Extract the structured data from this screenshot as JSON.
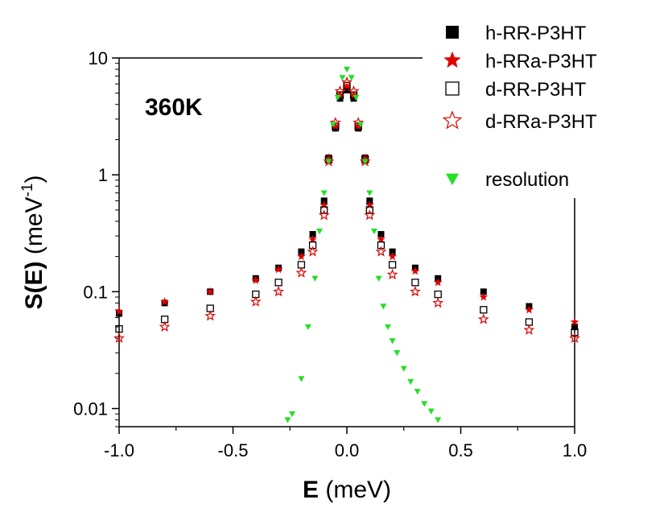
{
  "chart_data": {
    "type": "scatter",
    "title": "",
    "annotation": "360K",
    "xlabel": {
      "bold": "E",
      "rest": " (meV)"
    },
    "ylabel": {
      "bold": "S(E)",
      "rest": " (meV",
      "sup": "-1",
      "close": ")"
    },
    "xlim": [
      -1.0,
      1.0
    ],
    "ylim": [
      0.007,
      10
    ],
    "yscale": "log",
    "grid": false,
    "legend_position": "top-right",
    "x_ticks": [
      -1.0,
      -0.5,
      0.0,
      0.5,
      1.0
    ],
    "x_tick_labels": [
      "-1.0",
      "-0.5",
      "0.0",
      "0.5",
      "1.0"
    ],
    "y_ticks": [
      0.01,
      0.1,
      1,
      10
    ],
    "y_tick_labels": [
      "0.01",
      "0.1",
      "1",
      "10"
    ],
    "colors": {
      "black": "#000000",
      "red": "#e00000",
      "green": "#22e022"
    },
    "series": [
      {
        "name": "h-RR-P3HT",
        "marker": "square-filled",
        "color": "#000000",
        "x": [
          -1.0,
          -0.8,
          -0.6,
          -0.4,
          -0.3,
          -0.2,
          -0.15,
          -0.1,
          -0.08,
          -0.05,
          -0.03,
          0.0,
          0.03,
          0.05,
          0.08,
          0.1,
          0.15,
          0.2,
          0.3,
          0.4,
          0.6,
          0.8,
          1.0
        ],
        "y": [
          0.065,
          0.08,
          0.1,
          0.13,
          0.16,
          0.22,
          0.31,
          0.6,
          1.4,
          2.5,
          4.5,
          5.3,
          4.5,
          2.5,
          1.4,
          0.6,
          0.31,
          0.22,
          0.16,
          0.13,
          0.1,
          0.075,
          0.05
        ]
      },
      {
        "name": "h-RRa-P3HT",
        "marker": "star-filled",
        "color": "#e00000",
        "x": [
          -1.0,
          -0.8,
          -0.6,
          -0.4,
          -0.3,
          -0.2,
          -0.15,
          -0.1,
          -0.08,
          -0.05,
          -0.03,
          0.0,
          0.03,
          0.05,
          0.08,
          0.1,
          0.15,
          0.2,
          0.3,
          0.4,
          0.6,
          0.8,
          1.0
        ],
        "y": [
          0.068,
          0.082,
          0.1,
          0.125,
          0.155,
          0.2,
          0.28,
          0.55,
          1.4,
          2.6,
          4.8,
          5.6,
          4.8,
          2.6,
          1.4,
          0.55,
          0.28,
          0.2,
          0.15,
          0.12,
          0.09,
          0.07,
          0.055
        ]
      },
      {
        "name": "d-RR-P3HT",
        "marker": "square-open",
        "color": "#000000",
        "x": [
          -1.0,
          -0.8,
          -0.6,
          -0.4,
          -0.3,
          -0.2,
          -0.15,
          -0.1,
          -0.08,
          -0.05,
          -0.03,
          0.0,
          0.03,
          0.05,
          0.08,
          0.1,
          0.15,
          0.2,
          0.3,
          0.4,
          0.6,
          0.8,
          1.0
        ],
        "y": [
          0.048,
          0.058,
          0.072,
          0.095,
          0.12,
          0.17,
          0.25,
          0.5,
          1.35,
          2.6,
          4.8,
          5.8,
          4.8,
          2.6,
          1.35,
          0.5,
          0.25,
          0.17,
          0.12,
          0.095,
          0.07,
          0.055,
          0.045
        ]
      },
      {
        "name": "d-RRa-P3HT",
        "marker": "star-open",
        "color": "#e00000",
        "x": [
          -1.0,
          -0.8,
          -0.6,
          -0.4,
          -0.3,
          -0.2,
          -0.15,
          -0.1,
          -0.08,
          -0.05,
          -0.03,
          0.0,
          0.03,
          0.05,
          0.08,
          0.1,
          0.15,
          0.2,
          0.3,
          0.4,
          0.6,
          0.8,
          1.0
        ],
        "y": [
          0.04,
          0.05,
          0.062,
          0.082,
          0.1,
          0.145,
          0.22,
          0.45,
          1.3,
          2.8,
          5.2,
          6.2,
          5.2,
          2.8,
          1.3,
          0.45,
          0.22,
          0.14,
          0.1,
          0.08,
          0.058,
          0.047,
          0.04
        ]
      },
      {
        "name": "resolution",
        "marker": "triangle-down-filled",
        "color": "#22e022",
        "x": [
          -0.26,
          -0.24,
          -0.2,
          -0.17,
          -0.14,
          -0.12,
          -0.1,
          -0.08,
          -0.06,
          -0.04,
          -0.02,
          0.0,
          0.02,
          0.04,
          0.06,
          0.08,
          0.1,
          0.12,
          0.14,
          0.16,
          0.18,
          0.2,
          0.22,
          0.25,
          0.28,
          0.31,
          0.34,
          0.37,
          0.4
        ],
        "y": [
          0.008,
          0.009,
          0.018,
          0.05,
          0.13,
          0.33,
          0.7,
          1.3,
          2.7,
          4.6,
          6.8,
          8.0,
          6.8,
          4.6,
          2.7,
          1.3,
          0.7,
          0.33,
          0.13,
          0.075,
          0.05,
          0.038,
          0.03,
          0.022,
          0.017,
          0.014,
          0.011,
          0.0095,
          0.008
        ]
      }
    ]
  }
}
